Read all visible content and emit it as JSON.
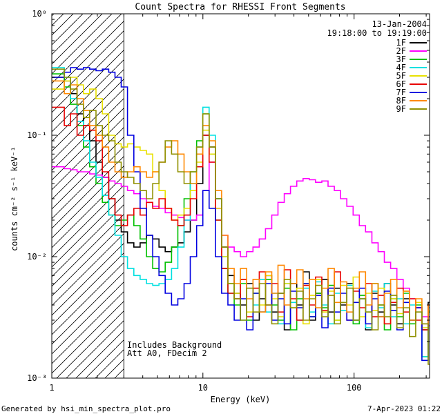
{
  "title": "Count Spectra for RHESSI Front Segments",
  "header": {
    "date": "13-Jan-2004",
    "time_range": "19:18:00 to 19:19:00"
  },
  "annotations": {
    "background": "Includes Background",
    "attenuator": "Att A0, FDecim 2"
  },
  "footer": {
    "generator": "Generated by hsi_min_spectra_plot.pro",
    "datetime": "7-Apr-2023 01:22"
  },
  "axes": {
    "x_ticks": [
      {
        "value": 1,
        "label": "1"
      },
      {
        "value": 10,
        "label": "10"
      },
      {
        "value": 100,
        "label": "100"
      }
    ],
    "y_ticks": [
      {
        "value": 1,
        "label": "10⁰"
      },
      {
        "value": 0.1,
        "label": "10⁻¹"
      },
      {
        "value": 0.01,
        "label": "10⁻²"
      },
      {
        "value": 0.001,
        "label": "10⁻³"
      }
    ]
  },
  "hatch_region": {
    "xmin": 1,
    "xmax": 3
  },
  "chart_data": {
    "type": "line",
    "style": "histogram-step",
    "xlog": true,
    "ylog": true,
    "title": "Count Spectra for RHESSI Front Segments",
    "xlabel": "Energy (keV)",
    "ylabel": "counts cm⁻² s⁻¹ keV⁻¹",
    "xlim": [
      1,
      316
    ],
    "ylim": [
      0.001,
      1
    ],
    "legend_position": "top-right",
    "x_keV": [
      1.1,
      1.21,
      1.33,
      1.47,
      1.62,
      1.78,
      1.96,
      2.16,
      2.38,
      2.62,
      2.88,
      3.17,
      3.49,
      3.84,
      4.23,
      4.65,
      5.12,
      5.63,
      6.2,
      6.82,
      7.5,
      8.25,
      9.08,
      9.99,
      10.99,
      12.09,
      13.3,
      14.63,
      16.1,
      17.71,
      19.48,
      21.43,
      23.58,
      25.94,
      28.53,
      31.39,
      34.53,
      37.98,
      41.78,
      45.96,
      50.56,
      55.62,
      61.18,
      67.3,
      74.03,
      81.43,
      89.58,
      98.54,
      108.4,
      119.2,
      131.2,
      144.3,
      158.7,
      174.6,
      192.1,
      211.3,
      232.4,
      255.7,
      281.3,
      309.4
    ],
    "series": [
      {
        "name": "1F",
        "color": "#000000",
        "values": [
          0.3,
          0.28,
          0.22,
          0.15,
          0.12,
          0.09,
          0.06,
          0.045,
          0.03,
          0.02,
          0.016,
          0.013,
          0.012,
          0.013,
          0.015,
          0.014,
          0.012,
          0.011,
          0.012,
          0.013,
          0.016,
          0.02,
          0.04,
          0.1,
          0.08,
          0.03,
          0.012,
          0.007,
          0.005,
          0.004,
          0.006,
          0.003,
          0.0045,
          0.007,
          0.0035,
          0.005,
          0.0025,
          0.006,
          0.004,
          0.0075,
          0.003,
          0.005,
          0.0065,
          0.0035,
          0.0055,
          0.004,
          0.006,
          0.003,
          0.0045,
          0.0025,
          0.005,
          0.0035,
          0.006,
          0.004,
          0.0028,
          0.0045,
          0.003,
          0.0038,
          0.0025,
          0.0042
        ]
      },
      {
        "name": "2F",
        "color": "#ff00ff",
        "values": [
          0.055,
          0.053,
          0.052,
          0.05,
          0.05,
          0.048,
          0.047,
          0.045,
          0.042,
          0.04,
          0.038,
          0.035,
          0.033,
          0.03,
          0.028,
          0.026,
          0.025,
          0.023,
          0.022,
          0.021,
          0.02,
          0.02,
          0.022,
          0.035,
          0.06,
          0.025,
          0.015,
          0.012,
          0.011,
          0.01,
          0.011,
          0.012,
          0.014,
          0.017,
          0.022,
          0.028,
          0.033,
          0.038,
          0.042,
          0.044,
          0.043,
          0.041,
          0.042,
          0.038,
          0.035,
          0.03,
          0.026,
          0.022,
          0.018,
          0.016,
          0.013,
          0.011,
          0.009,
          0.008,
          0.0065,
          0.0055,
          0.0045,
          0.0038,
          0.0032,
          0.0027
        ]
      },
      {
        "name": "3F",
        "color": "#00c000",
        "values": [
          0.32,
          0.25,
          0.18,
          0.12,
          0.08,
          0.055,
          0.04,
          0.028,
          0.022,
          0.018,
          0.02,
          0.022,
          0.018,
          0.014,
          0.01,
          0.008,
          0.0075,
          0.009,
          0.012,
          0.018,
          0.03,
          0.05,
          0.09,
          0.15,
          0.07,
          0.02,
          0.008,
          0.005,
          0.004,
          0.006,
          0.003,
          0.005,
          0.0035,
          0.0065,
          0.004,
          0.003,
          0.0055,
          0.0025,
          0.0045,
          0.006,
          0.0032,
          0.005,
          0.0038,
          0.0058,
          0.003,
          0.0042,
          0.0055,
          0.0028,
          0.0048,
          0.0035,
          0.006,
          0.004,
          0.0025,
          0.0045,
          0.0032,
          0.005,
          0.0028,
          0.004,
          0.0015,
          0.0035
        ]
      },
      {
        "name": "4F",
        "color": "#00e0e0",
        "values": [
          0.36,
          0.3,
          0.2,
          0.13,
          0.09,
          0.06,
          0.045,
          0.032,
          0.022,
          0.015,
          0.01,
          0.008,
          0.007,
          0.0065,
          0.006,
          0.0058,
          0.006,
          0.0065,
          0.008,
          0.012,
          0.02,
          0.04,
          0.08,
          0.17,
          0.1,
          0.03,
          0.01,
          0.006,
          0.0045,
          0.003,
          0.0055,
          0.004,
          0.0065,
          0.0035,
          0.005,
          0.0028,
          0.006,
          0.0042,
          0.003,
          0.0055,
          0.0035,
          0.0062,
          0.004,
          0.0028,
          0.005,
          0.0036,
          0.0058,
          0.003,
          0.0045,
          0.0026,
          0.0052,
          0.0038,
          0.006,
          0.0032,
          0.0045,
          0.0028,
          0.004,
          0.0035,
          0.0015,
          0.0038
        ]
      },
      {
        "name": "5F",
        "color": "#e8e000",
        "values": [
          0.24,
          0.28,
          0.3,
          0.26,
          0.22,
          0.24,
          0.2,
          0.15,
          0.1,
          0.085,
          0.08,
          0.085,
          0.08,
          0.075,
          0.07,
          0.05,
          0.035,
          0.025,
          0.02,
          0.022,
          0.025,
          0.035,
          0.06,
          0.11,
          0.07,
          0.025,
          0.01,
          0.006,
          0.005,
          0.0065,
          0.0035,
          0.0055,
          0.004,
          0.007,
          0.0045,
          0.0032,
          0.006,
          0.0038,
          0.0055,
          0.0028,
          0.0048,
          0.0065,
          0.0035,
          0.0052,
          0.003,
          0.0058,
          0.004,
          0.0068,
          0.0032,
          0.005,
          0.0036,
          0.0055,
          0.0028,
          0.0045,
          0.0034,
          0.0052,
          0.003,
          0.0042,
          0.0026,
          0.0036
        ]
      },
      {
        "name": "6F",
        "color": "#e80000",
        "values": [
          0.17,
          0.12,
          0.15,
          0.1,
          0.12,
          0.11,
          0.09,
          0.05,
          0.03,
          0.022,
          0.018,
          0.022,
          0.025,
          0.022,
          0.028,
          0.025,
          0.03,
          0.025,
          0.02,
          0.018,
          0.022,
          0.03,
          0.055,
          0.1,
          0.06,
          0.02,
          0.008,
          0.005,
          0.0045,
          0.0065,
          0.0032,
          0.0055,
          0.0075,
          0.004,
          0.006,
          0.0035,
          0.0078,
          0.0045,
          0.003,
          0.0058,
          0.004,
          0.0068,
          0.0036,
          0.0055,
          0.0075,
          0.0042,
          0.003,
          0.0052,
          0.0038,
          0.006,
          0.0032,
          0.0048,
          0.0028,
          0.0042,
          0.0055,
          0.0035,
          0.0045,
          0.003,
          0.0025,
          0.004
        ]
      },
      {
        "name": "7F",
        "color": "#0000e0",
        "values": [
          0.3,
          0.33,
          0.36,
          0.35,
          0.36,
          0.35,
          0.34,
          0.35,
          0.33,
          0.3,
          0.25,
          0.1,
          0.05,
          0.025,
          0.015,
          0.01,
          0.007,
          0.005,
          0.004,
          0.0045,
          0.006,
          0.01,
          0.018,
          0.035,
          0.025,
          0.01,
          0.005,
          0.004,
          0.003,
          0.0045,
          0.0025,
          0.005,
          0.0035,
          0.006,
          0.003,
          0.0045,
          0.0028,
          0.0052,
          0.0038,
          0.006,
          0.0032,
          0.0048,
          0.0026,
          0.0055,
          0.0035,
          0.005,
          0.003,
          0.0042,
          0.0055,
          0.0028,
          0.0045,
          0.0032,
          0.0052,
          0.0036,
          0.0025,
          0.0042,
          0.003,
          0.0038,
          0.0014,
          0.0032
        ]
      },
      {
        "name": "8F",
        "color": "#ff8800",
        "values": [
          0.28,
          0.22,
          0.26,
          0.2,
          0.16,
          0.12,
          0.1,
          0.08,
          0.06,
          0.05,
          0.045,
          0.05,
          0.055,
          0.05,
          0.045,
          0.05,
          0.06,
          0.08,
          0.09,
          0.07,
          0.05,
          0.04,
          0.07,
          0.12,
          0.09,
          0.035,
          0.015,
          0.008,
          0.006,
          0.008,
          0.0045,
          0.0065,
          0.0035,
          0.0075,
          0.005,
          0.0085,
          0.004,
          0.006,
          0.0078,
          0.0045,
          0.0065,
          0.0038,
          0.0055,
          0.008,
          0.0042,
          0.0062,
          0.0035,
          0.0055,
          0.0075,
          0.004,
          0.006,
          0.0032,
          0.005,
          0.0065,
          0.0038,
          0.0052,
          0.003,
          0.0045,
          0.0028,
          0.004
        ]
      },
      {
        "name": "9F",
        "color": "#909000",
        "values": [
          0.35,
          0.3,
          0.24,
          0.18,
          0.14,
          0.16,
          0.12,
          0.1,
          0.09,
          0.06,
          0.05,
          0.045,
          0.04,
          0.035,
          0.03,
          0.04,
          0.06,
          0.09,
          0.07,
          0.05,
          0.04,
          0.05,
          0.08,
          0.15,
          0.08,
          0.03,
          0.012,
          0.006,
          0.0045,
          0.003,
          0.0055,
          0.0035,
          0.006,
          0.004,
          0.0028,
          0.005,
          0.0065,
          0.0038,
          0.0052,
          0.003,
          0.0045,
          0.0058,
          0.0032,
          0.0048,
          0.0028,
          0.0042,
          0.0055,
          0.003,
          0.0045,
          0.0035,
          0.0025,
          0.004,
          0.0032,
          0.0048,
          0.0026,
          0.0038,
          0.0022,
          0.0035,
          0.0028,
          0.0013
        ]
      }
    ]
  }
}
